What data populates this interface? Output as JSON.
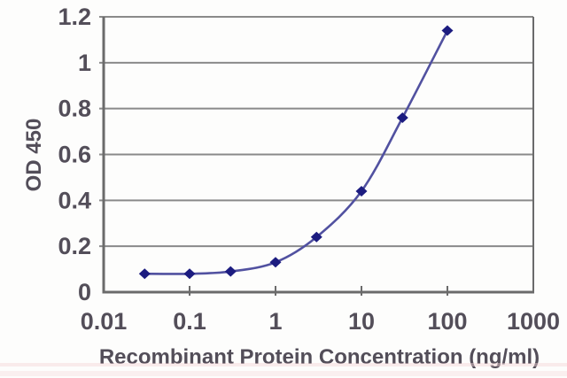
{
  "chart_data": {
    "type": "line",
    "title": "",
    "xlabel": "Recombinant Protein Concentration (ng/ml)",
    "ylabel": "OD 450",
    "x_scale": "log",
    "xlim": [
      0.01,
      1000
    ],
    "ylim": [
      0,
      1.2
    ],
    "x_tick_values": [
      0.01,
      0.1,
      1,
      10,
      100,
      1000
    ],
    "x_tick_labels": [
      "0.01",
      "0.1",
      "1",
      "10",
      "100",
      "1000"
    ],
    "y_tick_values": [
      0,
      0.2,
      0.4,
      0.6,
      0.8,
      1,
      1.2
    ],
    "y_tick_labels": [
      "0",
      "0.2",
      "0.4",
      "0.6",
      "0.8",
      "1",
      "1.2"
    ],
    "grid": true,
    "legend_position": "none",
    "series": [
      {
        "x": [
          0.03,
          0.1,
          0.3,
          1,
          3,
          10,
          30,
          100
        ],
        "y": [
          0.08,
          0.08,
          0.09,
          0.13,
          0.24,
          0.44,
          0.76,
          1.14
        ],
        "marker": "diamond",
        "line_style": "smooth"
      }
    ],
    "colors": {
      "line": "#5151a0",
      "marker": "#1c1c80",
      "grid": "#8a8a8a",
      "axis": "#6b6b6b",
      "text": "#534e59"
    }
  }
}
